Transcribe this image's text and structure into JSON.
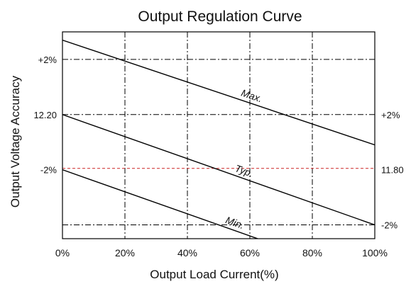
{
  "chart_data": {
    "type": "line",
    "title": "Output Regulation Curve",
    "xlabel": "Output Load Current(%)",
    "ylabel": "Output Voltage Accuracy",
    "xlim": [
      0,
      100
    ],
    "ylim": [
      -4.5,
      3
    ],
    "x_ticks": [
      0,
      20,
      40,
      60,
      80,
      100
    ],
    "x_tick_labels": [
      "0%",
      "20%",
      "40%",
      "60%",
      "80%",
      "100%"
    ],
    "left_labels": [
      {
        "y": 2,
        "text": "+2%"
      },
      {
        "y": 0,
        "text": "12.20"
      },
      {
        "y": -2,
        "text": "-2%"
      }
    ],
    "right_labels": [
      {
        "y": 0,
        "text": "+2%"
      },
      {
        "y": -2,
        "text": "11.80"
      },
      {
        "y": -4,
        "text": "-2%"
      }
    ],
    "series": [
      {
        "name": "Max.",
        "x": [
          0,
          100
        ],
        "y": [
          2.7,
          -1.1
        ]
      },
      {
        "name": "Typ.",
        "x": [
          0,
          100
        ],
        "y": [
          0,
          -4
        ]
      },
      {
        "name": "Min.",
        "x": [
          0,
          100
        ],
        "y": [
          -2,
          -6
        ]
      }
    ],
    "reference_lines": [
      {
        "y": 2,
        "style": "dash-dot",
        "color": "#000000"
      },
      {
        "y": 0,
        "style": "dash-dot",
        "color": "#000000"
      },
      {
        "y": -1.95,
        "style": "dashed",
        "color": "#cc2222"
      },
      {
        "y": -4,
        "style": "dash-dot",
        "color": "#000000"
      },
      {
        "y": -6,
        "style": "dash-dot",
        "color": "#000000"
      }
    ],
    "grid": true
  }
}
